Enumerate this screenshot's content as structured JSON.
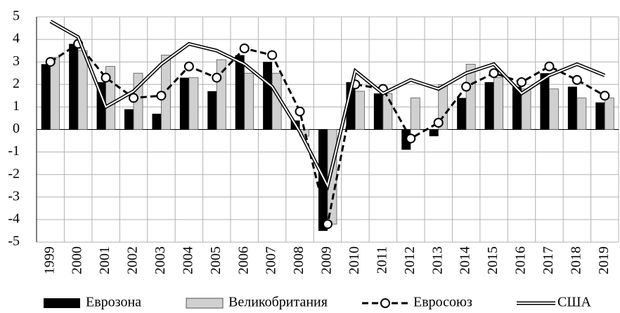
{
  "chart_data": {
    "type": "bar",
    "categories": [
      "1999",
      "2000",
      "2001",
      "2002",
      "2003",
      "2004",
      "2005",
      "2006",
      "2007",
      "2008",
      "2009",
      "2010",
      "2011",
      "2012",
      "2013",
      "2014",
      "2015",
      "2016",
      "2017",
      "2018",
      "2019"
    ],
    "series": [
      {
        "name": "Еврозона",
        "type": "bar",
        "color": "#000000",
        "values": [
          2.9,
          3.8,
          2.1,
          0.9,
          0.7,
          2.3,
          1.7,
          3.3,
          3.0,
          0.4,
          -4.5,
          2.1,
          1.6,
          -0.9,
          -0.3,
          1.4,
          2.1,
          1.9,
          2.5,
          1.9,
          1.2
        ]
      },
      {
        "name": "Великобритания",
        "type": "bar",
        "color": "#d0d0d0",
        "values": [
          3.2,
          3.5,
          2.8,
          2.5,
          3.3,
          2.3,
          3.1,
          2.5,
          2.5,
          -0.3,
          -4.2,
          1.7,
          1.6,
          1.4,
          2.0,
          2.9,
          2.3,
          1.8,
          1.8,
          1.4,
          1.4
        ]
      },
      {
        "name": "Евросоюз",
        "type": "line",
        "style": "dashed-marker",
        "color": "#000000",
        "values": [
          3.0,
          3.8,
          2.3,
          1.4,
          1.5,
          2.8,
          2.3,
          3.6,
          3.3,
          0.8,
          -4.2,
          2.0,
          1.8,
          -0.4,
          0.3,
          1.9,
          2.5,
          2.1,
          2.8,
          2.2,
          1.5
        ]
      },
      {
        "name": "США",
        "type": "line",
        "style": "double",
        "color": "#000000",
        "values": [
          4.8,
          4.1,
          1.0,
          1.7,
          2.9,
          3.8,
          3.5,
          2.9,
          1.9,
          -0.1,
          -2.5,
          2.6,
          1.6,
          2.2,
          1.8,
          2.5,
          2.9,
          1.6,
          2.4,
          2.9,
          2.4
        ]
      }
    ],
    "ylim": [
      -5,
      5
    ],
    "yticks": [
      -5,
      -4,
      -3,
      -2,
      -1,
      0,
      1,
      2,
      3,
      4,
      5
    ],
    "grid": true,
    "legend": "bottom"
  }
}
